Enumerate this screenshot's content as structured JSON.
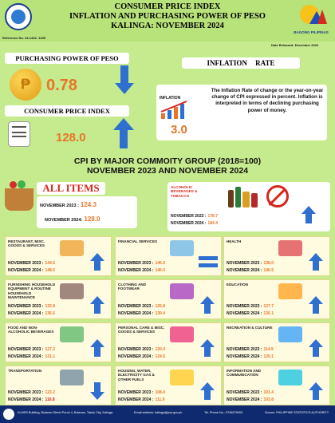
{
  "header": {
    "title_line1": "CONSUMER PRICE INDEX",
    "title_line2": "INFLATION AND PURCHASING POWER OF PESO",
    "title_line3": "KALINGA: NOVEMBER 2024",
    "reference_no": "Reference No. 24-1432- 1205",
    "date_released": "Date Released: December 2024",
    "bagong_label": "BAGONG PILIPINAS"
  },
  "purchasing_power": {
    "title": "PURCHASING POWER OF PESO",
    "value": "0.78"
  },
  "cpi": {
    "title": "CONSUMER PRICE INDEX",
    "value": "128.0"
  },
  "inflation": {
    "title": "INFLATION RATE",
    "icon_label": "INFLATION",
    "value": "3.0",
    "description": "The Inflation Rate of change or the year-on-year change of CPI expressed in percent. Inflation is interpreted in terms of declining purchasing power of money."
  },
  "section_title_1": "CPI BY MAJOR COMMOITY GROUP (2018=100)",
  "section_title_2": "NOVEMBER 2023 AND NOVEMBER 2024",
  "all_items": {
    "title": "ALL ITEMS",
    "row1_label": "NOVEMBER 2023 :",
    "row1_value": "124.3",
    "row2_label": "NOVEMBER 2024:",
    "row2_value": "128.0"
  },
  "alcoholic": {
    "name": "ALCOHOLIC BEVERAGES & TOBACCO",
    "row1_label": "NOVEMBER 2023 :",
    "row1_value": "178.7",
    "row2_label": "NOVEMBER 2024 :",
    "row2_value": "184.4"
  },
  "groups": [
    {
      "name": "RESTAURANT, MISC. GOODS & SERVICES",
      "y2023_label": "NOVEMBER 2023 :",
      "y2023": "144.5",
      "y2024_label": "NOVEMBER 2024 :",
      "y2024": "148.5",
      "trend": "up"
    },
    {
      "name": "FINANCIAL SERVICES",
      "y2023_label": "NOVEMBER 2023 :",
      "y2023": "146.0",
      "y2024_label": "NOVEMBER 2024 :",
      "y2024": "146.0",
      "trend": "equal"
    },
    {
      "name": "HEALTH",
      "y2023_label": "NOVEMBER 2023 :",
      "y2023": "138.0",
      "y2024_label": "NOVEMBER 2024 :",
      "y2024": "140.5",
      "trend": "up"
    },
    {
      "name": "FURNISHING HOUSEHOLD EQUIPMENT & ROUTINE HOUSEHOLD MAINTENANCE",
      "y2023_label": "NOVEMBER 2023 :",
      "y2023": "132.8",
      "y2024_label": "NOVEMBER 2024 :",
      "y2024": "136.5",
      "trend": "up"
    },
    {
      "name": "CLOTHING AND FOOTWEAR",
      "y2023_label": "NOVEMBER 2023 :",
      "y2023": "125.8",
      "y2024_label": "NOVEMBER 2024 :",
      "y2024": "130.4",
      "trend": "up"
    },
    {
      "name": "EDUCATION",
      "y2023_label": "NOVEMBER 2023 :",
      "y2023": "127.7",
      "y2024_label": "NOVEMBER 2024 :",
      "y2024": "130.1",
      "trend": "up"
    },
    {
      "name": "FOOD AND NON-ALCOHOLIC BEVERAGES",
      "y2023_label": "NOVEMBER 2023 :",
      "y2023": "127.2",
      "y2024_label": "NOVEMBER 2024 :",
      "y2024": "131.1",
      "trend": "up"
    },
    {
      "name": "PERSONAL CARE & MISC. GOODS & SERVICES",
      "y2023_label": "NOVEMBER 2023 :",
      "y2023": "120.4",
      "y2024_label": "NOVEMBER 2024 :",
      "y2024": "124.5",
      "trend": "up"
    },
    {
      "name": "RECREATION & CULTURE",
      "y2023_label": "NOVEMBER 2023 :",
      "y2023": "114.9",
      "y2024_label": "NOVEMBER 2024 :",
      "y2024": "120.1",
      "trend": "up"
    },
    {
      "name": "TRANSPORTATION",
      "y2023_label": "NOVEMBER 2023 :",
      "y2023": "123.2",
      "y2024_label": "NOVEMBER 2024 :",
      "y2024": "116.8",
      "trend": "down"
    },
    {
      "name": "HOUSING, WATER, ELECTRICITY GAS & OTHER FUELS",
      "y2023_label": "NOVEMBER 2023 :",
      "y2023": "108.4",
      "y2024_label": "NOVEMBER 2024 :",
      "y2024": "111.9",
      "trend": "up"
    },
    {
      "name": "INFORMATION AND COMMUNICATION",
      "y2023_label": "NOVEMBER 2023 :",
      "y2023": "101.4",
      "y2024_label": "NOVEMBER 2024 :",
      "y2024": "103.8",
      "trend": "up"
    }
  ],
  "footer": {
    "address": "KLMSS Building, Bulanao Street Purok 4, Bulanao, Tabuk City, Kalinga",
    "email": "Email address: kalinga@psa.gov.ph",
    "tel": "Tel. Phone No.: 0748279003",
    "source": "Source: PHILIPPINE STATISTICS AUTHORITY"
  },
  "colors": {
    "background": "#c6ea8e",
    "accent": "#e8752a",
    "arrow": "#2f6fd0",
    "decrease": "#d6261c"
  }
}
